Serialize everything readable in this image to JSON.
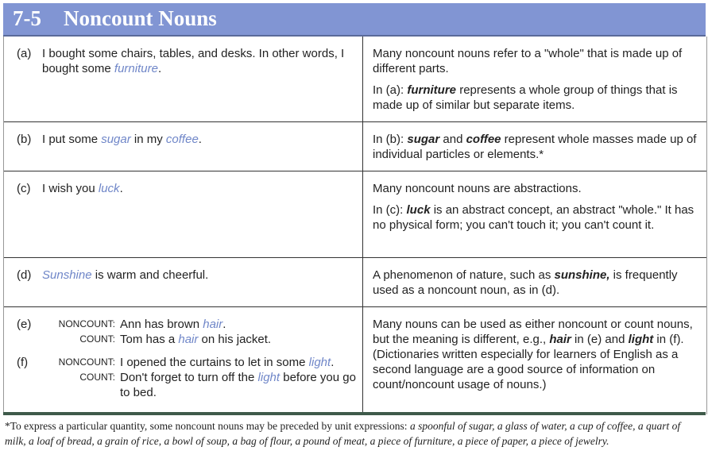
{
  "header": {
    "number": "7-5",
    "title": "Noncount Nouns"
  },
  "rows": [
    {
      "label": "(a)",
      "left": [
        {
          "t": "I bought some chairs, tables, and desks.  In other words, I bought some "
        },
        {
          "t": "furniture",
          "s": "blue"
        },
        {
          "t": "."
        }
      ],
      "right": [
        [
          {
            "t": "Many noncount nouns refer to a \"whole\" that is made up of different parts."
          }
        ],
        [
          {
            "t": "In (a):  "
          },
          {
            "t": "furniture",
            "s": "bold"
          },
          {
            "t": " represents a whole group of things that is made up of similar but separate items."
          }
        ]
      ]
    },
    {
      "label": "(b)",
      "left": [
        {
          "t": "I put some "
        },
        {
          "t": "sugar",
          "s": "blue"
        },
        {
          "t": " in my "
        },
        {
          "t": "coffee",
          "s": "blue"
        },
        {
          "t": "."
        }
      ],
      "right": [
        [
          {
            "t": "In (b):  "
          },
          {
            "t": "sugar",
            "s": "bold"
          },
          {
            "t": " and "
          },
          {
            "t": "coffee",
            "s": "bold"
          },
          {
            "t": " represent whole masses made up of individual particles or elements.*"
          }
        ]
      ]
    },
    {
      "label": "(c)",
      "left": [
        {
          "t": "I wish you "
        },
        {
          "t": "luck",
          "s": "blue"
        },
        {
          "t": "."
        }
      ],
      "right": [
        [
          {
            "t": "Many noncount nouns are abstractions."
          }
        ],
        [
          {
            "t": "In (c):  "
          },
          {
            "t": "luck",
            "s": "bold"
          },
          {
            "t": " is an abstract concept, an abstract \"whole.\" It has no physical form; you can't touch it; you can't count it."
          }
        ]
      ]
    },
    {
      "label": "(d)",
      "left": [
        {
          "t": "Sunshine",
          "s": "blue"
        },
        {
          "t": " is warm and cheerful."
        }
      ],
      "right": [
        [
          {
            "t": "A phenomenon of nature, such as "
          },
          {
            "t": "sunshine,",
            "s": "bold"
          },
          {
            "t": " is frequently used as a noncount noun, as in (d)."
          }
        ]
      ]
    }
  ],
  "row_ef": {
    "examples": [
      {
        "num": "(e)",
        "tag": "NONCOUNT:",
        "text": [
          {
            "t": "Ann has brown "
          },
          {
            "t": "hair",
            "s": "blue"
          },
          {
            "t": "."
          }
        ]
      },
      {
        "num": "",
        "tag": "COUNT:",
        "text": [
          {
            "t": "Tom has a "
          },
          {
            "t": "hair",
            "s": "blue"
          },
          {
            "t": " on his jacket."
          }
        ]
      },
      {
        "num": "(f)",
        "tag": "NONCOUNT:",
        "text": [
          {
            "t": "I opened the curtains to let in some "
          },
          {
            "t": "light",
            "s": "blue"
          },
          {
            "t": "."
          }
        ]
      },
      {
        "num": "",
        "tag": "COUNT:",
        "text": [
          {
            "t": "Don't forget to turn off the "
          },
          {
            "t": "light",
            "s": "blue"
          },
          {
            "t": " before you go to bed."
          }
        ]
      }
    ],
    "right": [
      [
        {
          "t": "Many nouns can be used as either noncount or count nouns, but the meaning is different, e.g., "
        },
        {
          "t": "hair",
          "s": "bold"
        },
        {
          "t": " in (e) and "
        },
        {
          "t": "light",
          "s": "bold"
        },
        {
          "t": " in (f)."
        }
      ],
      [
        {
          "t": "(Dictionaries written especially for learners of English as a second language are a good source of information on count/noncount usage of nouns.)"
        }
      ]
    ]
  },
  "footnote": {
    "text": "*To express a particular quantity, some noncount nouns may be preceded by unit expressions: ",
    "examples": "a spoonful of sugar, a glass of water, a cup of coffee, a quart of milk, a loaf of bread, a grain of rice, a bowl of soup, a bag of flour, a pound of meat, a piece of furniture, a piece of paper, a piece of jewelry."
  },
  "colors": {
    "header": "#8195d3",
    "keyword": "#6f86c8",
    "rule": "#3e5a4a"
  }
}
